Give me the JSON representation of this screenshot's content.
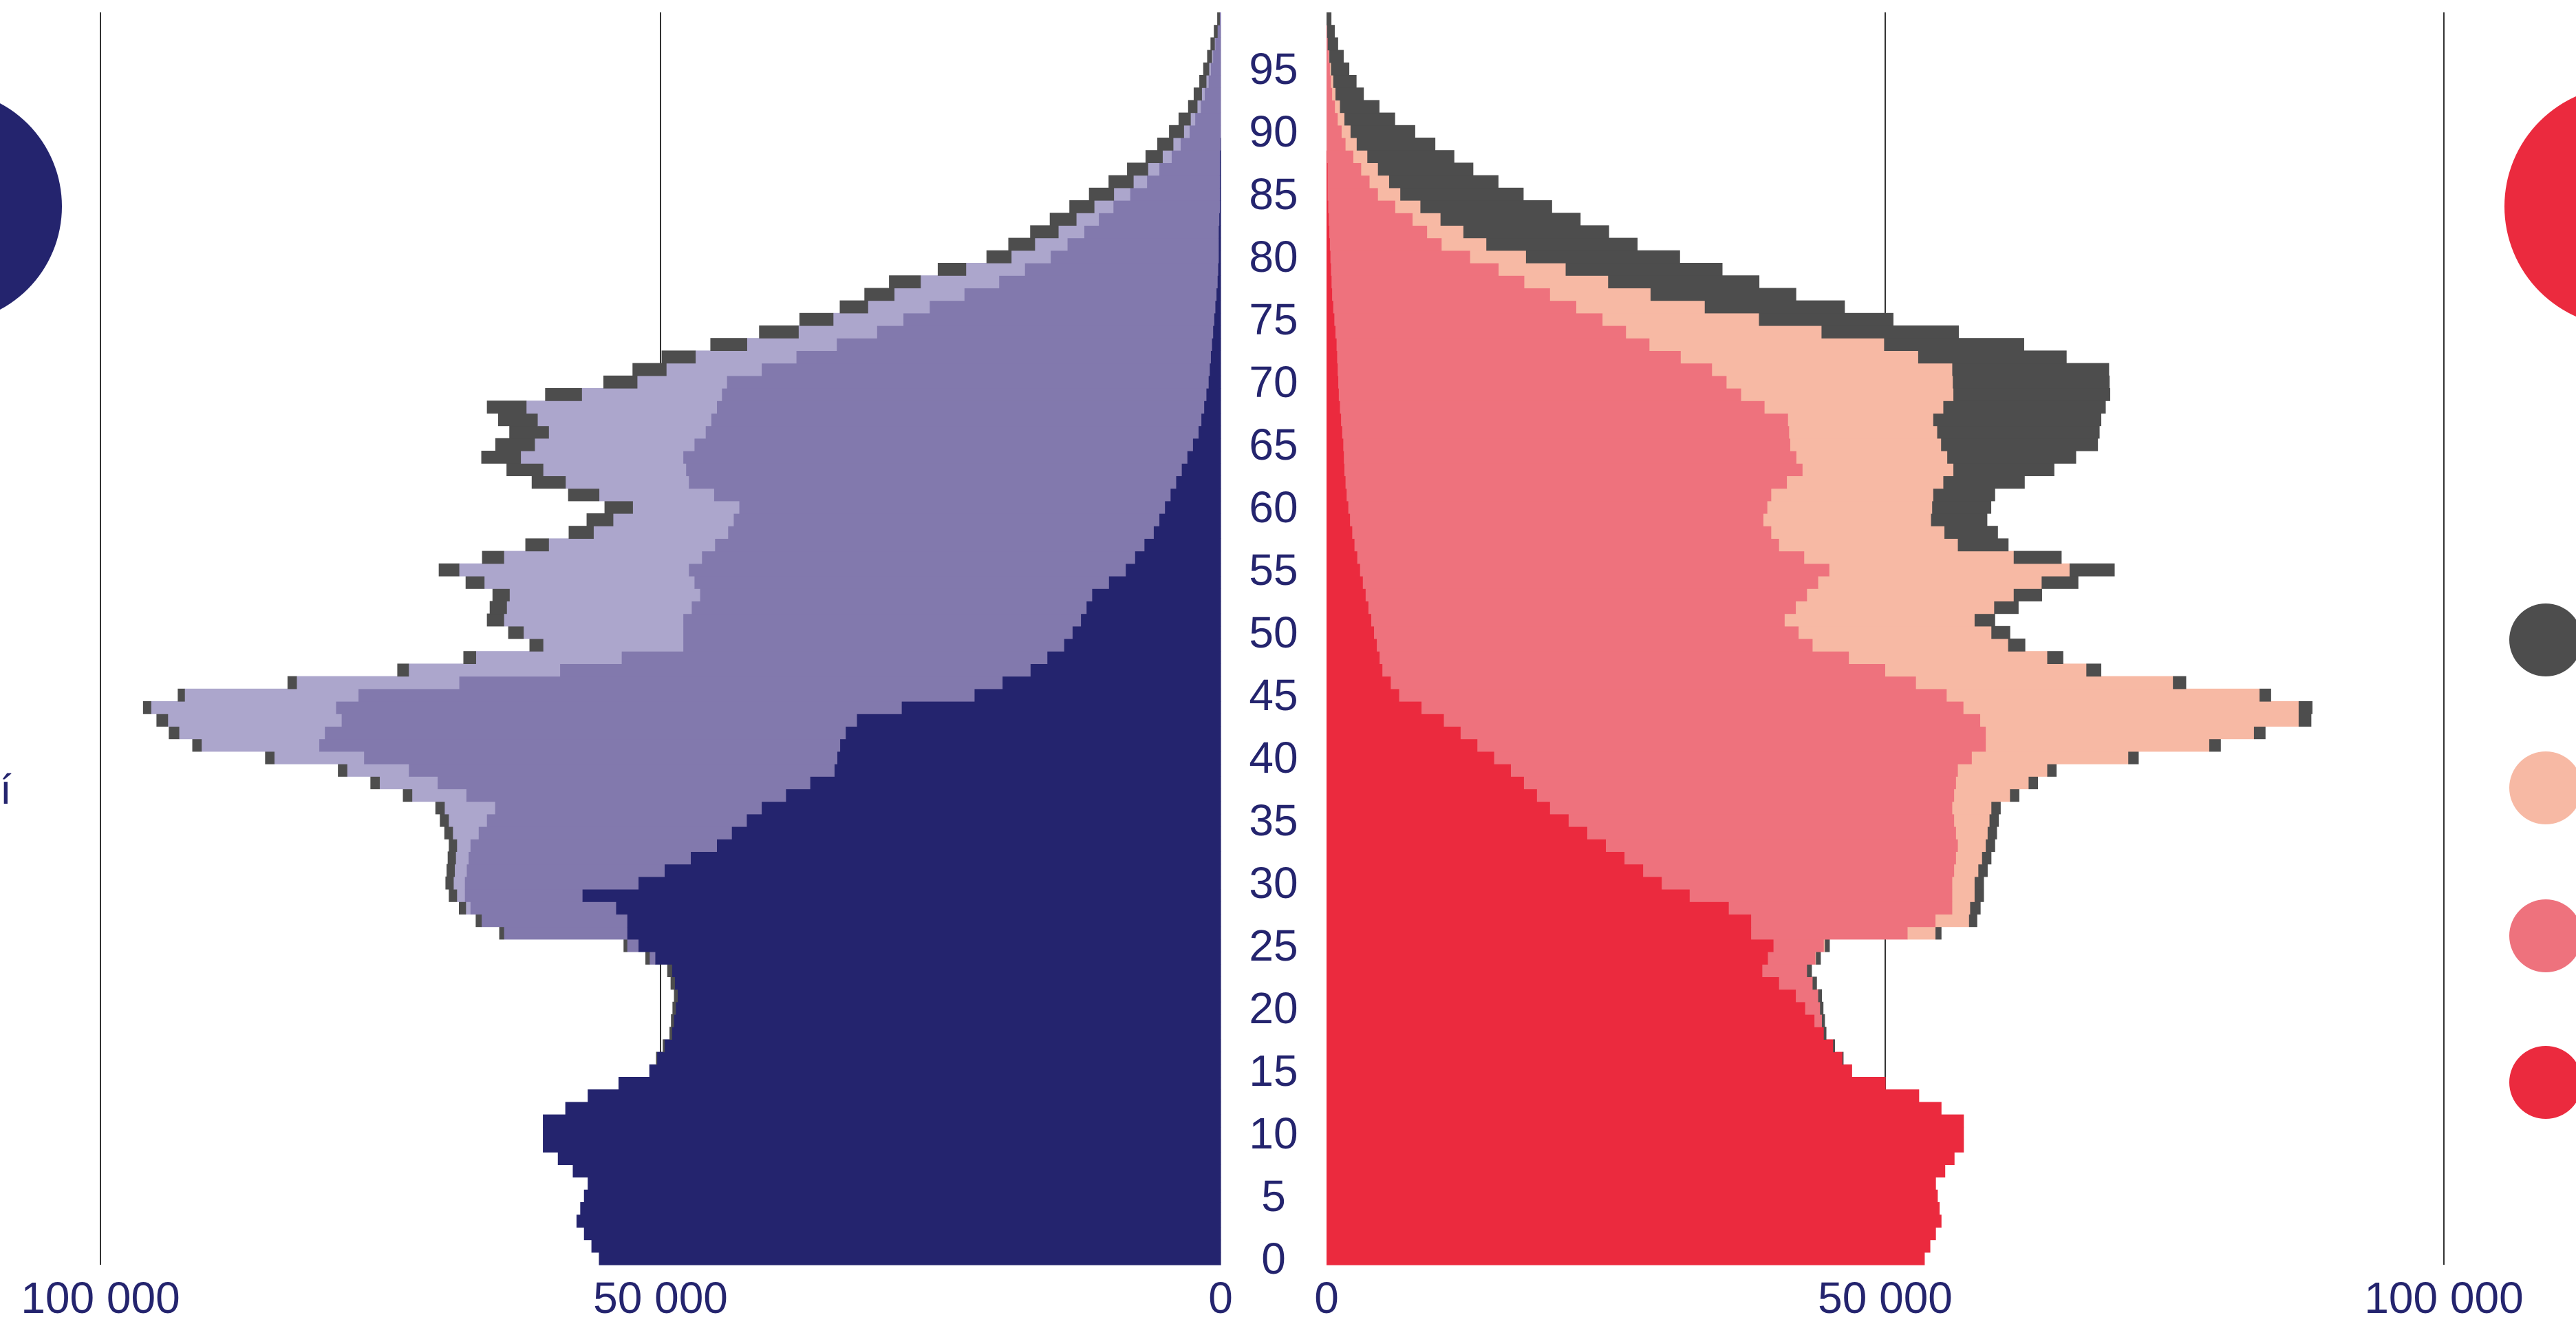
{
  "chart_data": {
    "type": "population-pyramid",
    "age_axis": {
      "min": 0,
      "max": 99,
      "tick_step": 5,
      "ticks": [
        "0",
        "5",
        "10",
        "15",
        "20",
        "25",
        "30",
        "35",
        "40",
        "45",
        "50",
        "55",
        "60",
        "65",
        "70",
        "75",
        "80",
        "85",
        "90",
        "95"
      ]
    },
    "x_axis": {
      "max": 100000,
      "left_ticks": [
        {
          "value": 100000,
          "label": "100 000"
        },
        {
          "value": 50000,
          "label": "50 000"
        },
        {
          "value": 0,
          "label": "0"
        }
      ],
      "right_ticks": [
        {
          "value": 0,
          "label": "0"
        },
        {
          "value": 50000,
          "label": "50 000"
        },
        {
          "value": 100000,
          "label": "100 000"
        }
      ],
      "gridlines": [
        50000,
        100000
      ]
    },
    "legend_labels": [
      "í"
    ],
    "men": {
      "colors": [
        "#24246e",
        "#8279ad",
        "#aca6cc",
        "#4d4d4d"
      ],
      "anchors": [
        [
          0,
          55500,
          0,
          0,
          0
        ],
        [
          3,
          57500,
          0,
          0,
          0
        ],
        [
          6,
          56500,
          0,
          0,
          0
        ],
        [
          9,
          60500,
          0,
          0,
          0
        ],
        [
          11,
          60500,
          0,
          0,
          0
        ],
        [
          13,
          56500,
          0,
          0,
          0
        ],
        [
          15,
          51000,
          0,
          0,
          0
        ],
        [
          18,
          49000,
          0,
          0,
          200
        ],
        [
          21,
          48500,
          0,
          0,
          300
        ],
        [
          23,
          49000,
          0,
          0,
          400
        ],
        [
          25,
          52000,
          1000,
          0,
          300
        ],
        [
          26,
          53000,
          11000,
          0,
          400
        ],
        [
          27,
          53000,
          13000,
          0,
          500
        ],
        [
          28,
          54000,
          13000,
          400,
          600
        ],
        [
          29,
          57000,
          10500,
          700,
          700
        ],
        [
          30,
          52000,
          15500,
          1000,
          700
        ],
        [
          33,
          45000,
          22000,
          1200,
          700
        ],
        [
          36,
          41000,
          23800,
          4500,
          800
        ],
        [
          39,
          34500,
          38000,
          5500,
          800
        ],
        [
          41,
          34000,
          46500,
          10500,
          800
        ],
        [
          42,
          33500,
          46500,
          13000,
          900
        ],
        [
          43,
          32500,
          46000,
          15500,
          1000
        ],
        [
          44,
          28500,
          50500,
          16500,
          700
        ],
        [
          45,
          22000,
          55000,
          15500,
          600
        ],
        [
          47,
          17000,
          42000,
          13500,
          1000
        ],
        [
          49,
          14000,
          34000,
          12500,
          1200
        ],
        [
          51,
          12500,
          35500,
          16000,
          1500
        ],
        [
          53,
          11500,
          35000,
          17000,
          1500
        ],
        [
          55,
          8500,
          39000,
          20500,
          1800
        ],
        [
          58,
          6000,
          38000,
          12000,
          2200
        ],
        [
          60,
          5000,
          38000,
          9500,
          2500
        ],
        [
          62,
          4000,
          43500,
          11000,
          3000
        ],
        [
          64,
          3000,
          45000,
          14500,
          3500
        ],
        [
          66,
          2000,
          44000,
          14000,
          3500
        ],
        [
          68,
          1500,
          43500,
          17000,
          3500
        ],
        [
          70,
          1100,
          43000,
          8000,
          3000
        ],
        [
          72,
          900,
          37000,
          9000,
          3000
        ],
        [
          74,
          700,
          30000,
          7000,
          3500
        ],
        [
          76,
          500,
          25500,
          5500,
          2500
        ],
        [
          78,
          300,
          19500,
          7000,
          2800
        ],
        [
          80,
          200,
          15000,
          3500,
          2200
        ],
        [
          82,
          200,
          12000,
          2300,
          2500
        ],
        [
          84,
          100,
          9500,
          1700,
          2200
        ],
        [
          86,
          100,
          6500,
          1200,
          2200
        ],
        [
          88,
          100,
          4300,
          800,
          1500
        ],
        [
          90,
          0,
          2800,
          500,
          1300
        ],
        [
          92,
          0,
          1800,
          300,
          800
        ],
        [
          94,
          0,
          1100,
          200,
          600
        ],
        [
          96,
          0,
          700,
          100,
          400
        ],
        [
          98,
          0,
          300,
          0,
          300
        ],
        [
          99,
          0,
          100,
          0,
          200
        ]
      ]
    },
    "women": {
      "colors": [
        "#eb2a3e",
        "#ee727d",
        "#f7b9a4",
        "#4d4d4d"
      ],
      "anchors": [
        [
          0,
          53500,
          0,
          0,
          0
        ],
        [
          3,
          55000,
          0,
          0,
          0
        ],
        [
          6,
          54500,
          0,
          0,
          0
        ],
        [
          9,
          57000,
          0,
          0,
          0
        ],
        [
          11,
          57000,
          0,
          0,
          0
        ],
        [
          13,
          53000,
          0,
          0,
          0
        ],
        [
          15,
          47000,
          0,
          0,
          0
        ],
        [
          18,
          44500,
          0,
          0,
          200
        ],
        [
          21,
          42000,
          2000,
          0,
          300
        ],
        [
          23,
          39000,
          4000,
          0,
          400
        ],
        [
          25,
          40000,
          4500,
          100,
          400
        ],
        [
          26,
          38000,
          14000,
          2500,
          500
        ],
        [
          27,
          38000,
          16500,
          3000,
          700
        ],
        [
          28,
          36000,
          20000,
          1600,
          900
        ],
        [
          29,
          32500,
          23500,
          2000,
          800
        ],
        [
          30,
          30000,
          26000,
          2000,
          800
        ],
        [
          33,
          25000,
          31500,
          2500,
          800
        ],
        [
          36,
          20000,
          36000,
          3500,
          800
        ],
        [
          39,
          16500,
          40000,
          8000,
          800
        ],
        [
          41,
          13500,
          45500,
          20000,
          1000
        ],
        [
          42,
          12000,
          47000,
          24000,
          1000
        ],
        [
          43,
          10500,
          48000,
          28500,
          1100
        ],
        [
          44,
          8500,
          48500,
          30000,
          1200
        ],
        [
          45,
          6500,
          49000,
          28000,
          1000
        ],
        [
          47,
          5000,
          45000,
          18000,
          1300
        ],
        [
          49,
          4500,
          39000,
          17500,
          1500
        ],
        [
          51,
          4000,
          37000,
          17000,
          1800
        ],
        [
          53,
          3500,
          39500,
          18500,
          2500
        ],
        [
          55,
          3000,
          42000,
          21500,
          4000
        ],
        [
          57,
          2500,
          38000,
          16000,
          4500
        ],
        [
          59,
          2100,
          37000,
          15000,
          5000
        ],
        [
          61,
          1800,
          38000,
          14500,
          5500
        ],
        [
          63,
          1600,
          41000,
          13500,
          9000
        ],
        [
          65,
          1500,
          40000,
          13500,
          14000
        ],
        [
          67,
          1300,
          40000,
          13000,
          15000
        ],
        [
          69,
          1100,
          36000,
          19000,
          14000
        ],
        [
          71,
          1000,
          33500,
          21500,
          14000
        ],
        [
          73,
          900,
          28000,
          21000,
          12500
        ],
        [
          75,
          700,
          24000,
          14000,
          12000
        ],
        [
          77,
          500,
          19500,
          9000,
          13000
        ],
        [
          79,
          400,
          15000,
          6000,
          14000
        ],
        [
          81,
          300,
          10000,
          4000,
          13500
        ],
        [
          83,
          200,
          7500,
          2500,
          12500
        ],
        [
          85,
          100,
          4500,
          2000,
          11000
        ],
        [
          87,
          100,
          3000,
          1500,
          8500
        ],
        [
          89,
          0,
          1700,
          1000,
          7000
        ],
        [
          91,
          0,
          1000,
          600,
          4500
        ],
        [
          93,
          0,
          500,
          300,
          2500
        ],
        [
          95,
          0,
          300,
          100,
          1600
        ],
        [
          97,
          0,
          100,
          0,
          900
        ],
        [
          99,
          0,
          0,
          0,
          400
        ]
      ]
    }
  }
}
